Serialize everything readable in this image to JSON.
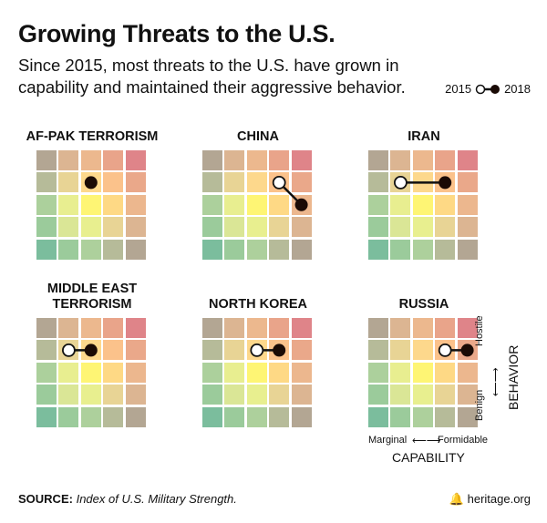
{
  "title": "Growing Threats to the U.S.",
  "subtitle": "Since 2015, most threats to the U.S. have grown in capability and maintained their aggressive behavior.",
  "legend": {
    "start": "2015",
    "end": "2018"
  },
  "colors": [
    [
      "#b3a693",
      "#dcb592",
      "#ecb88e",
      "#e9a48a",
      "#df8489"
    ],
    [
      "#b6bb99",
      "#e8d495",
      "#fdd88c",
      "#fbc28b",
      "#eaa88a"
    ],
    [
      "#acd09c",
      "#e8ee90",
      "#fef574",
      "#fed985",
      "#ecb78e"
    ],
    [
      "#9bcb9b",
      "#dae696",
      "#e8ef8f",
      "#e8d495",
      "#dcb592"
    ],
    [
      "#7bbd9d",
      "#9bcb9b",
      "#add09c",
      "#b6bb99",
      "#b3a693"
    ]
  ],
  "panels": [
    {
      "name": "AF-PAK TERRORISM",
      "y2015": {
        "capability": 3,
        "behavior": 4
      },
      "y2018": {
        "capability": 3,
        "behavior": 4
      }
    },
    {
      "name": "CHINA",
      "y2015": {
        "capability": 4,
        "behavior": 4
      },
      "y2018": {
        "capability": 5,
        "behavior": 3
      }
    },
    {
      "name": "IRAN",
      "y2015": {
        "capability": 2,
        "behavior": 4
      },
      "y2018": {
        "capability": 4,
        "behavior": 4
      }
    },
    {
      "name": "MIDDLE EAST TERRORISM",
      "y2015": {
        "capability": 2,
        "behavior": 4
      },
      "y2018": {
        "capability": 3,
        "behavior": 4
      }
    },
    {
      "name": "NORTH KOREA",
      "y2015": {
        "capability": 3,
        "behavior": 4
      },
      "y2018": {
        "capability": 4,
        "behavior": 4
      }
    },
    {
      "name": "RUSSIA",
      "y2015": {
        "capability": 4,
        "behavior": 4
      },
      "y2018": {
        "capability": 5,
        "behavior": 4
      }
    }
  ],
  "axes": {
    "x_label": "CAPABILITY",
    "x_low": "Marginal",
    "x_high": "Formidable",
    "y_label": "BEHAVIOR",
    "y_low": "Benign",
    "y_high": "Hostile"
  },
  "source_label": "SOURCE:",
  "source_text": "Index of U.S. Military Strength.",
  "brand": "heritage.org"
}
